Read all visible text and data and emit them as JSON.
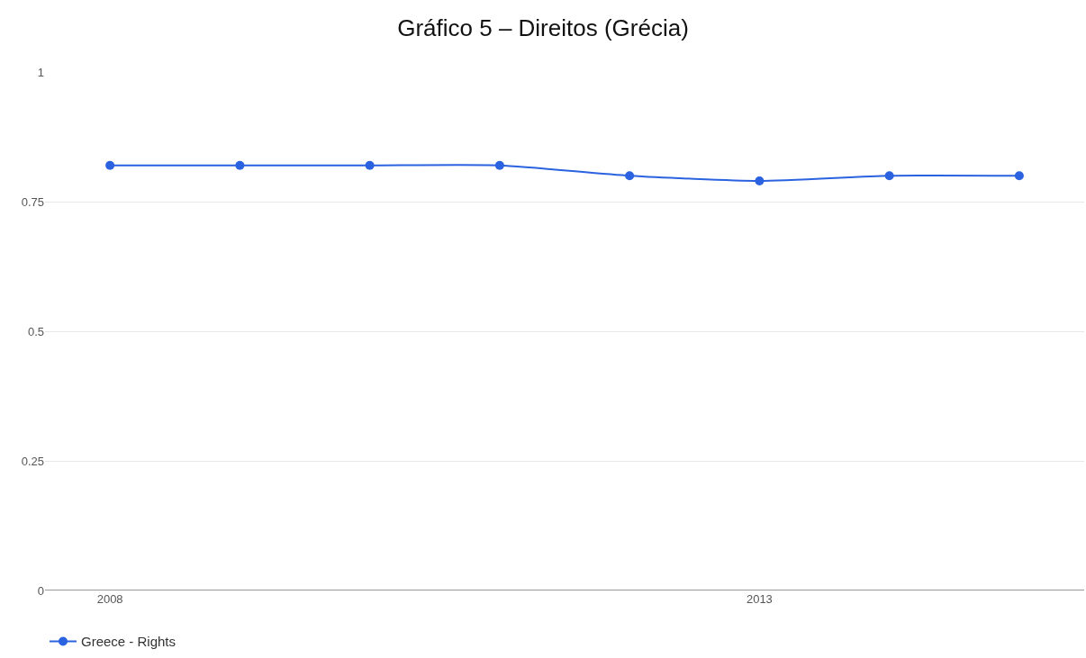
{
  "chart_data": {
    "type": "line",
    "title": "Gráfico 5 – Direitos (Grécia)",
    "x": [
      2008,
      2009,
      2010,
      2011,
      2012,
      2013,
      2014,
      2015
    ],
    "series": [
      {
        "name": "Greece - Rights",
        "color": "#2a62e0",
        "values": [
          0.82,
          0.82,
          0.82,
          0.82,
          0.8,
          0.79,
          0.8,
          0.8
        ]
      }
    ],
    "xlim": [
      2007.5,
      2015.5
    ],
    "xticks": [
      2008,
      2013
    ],
    "ylim": [
      0,
      1
    ],
    "yticks": [
      0,
      0.25,
      0.5,
      0.75,
      1
    ],
    "grid": "y",
    "legend": "bottom left",
    "marker": "circle",
    "line_style": "solid"
  }
}
